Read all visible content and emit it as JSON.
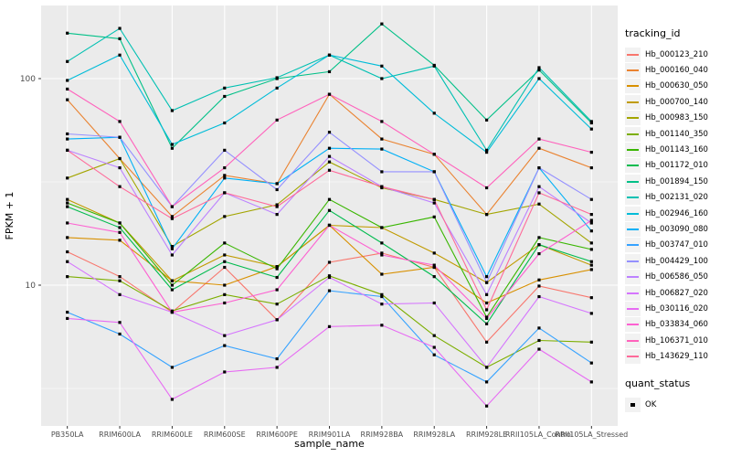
{
  "chart": {
    "y_axis_title": "FPKM + 1",
    "x_axis_title": "sample_name",
    "legend_title": "tracking_id",
    "legend2_title": "quant_status",
    "legend2_items": [
      "OK"
    ],
    "panel_bg": "#EBEBEB",
    "grid_color": "#FFFFFF",
    "tick_color": "#333333",
    "tick_label_color": "#4D4D4D",
    "marker_color": "#000000"
  },
  "chart_data": {
    "type": "line",
    "title": "",
    "xlabel": "sample_name",
    "ylabel": "FPKM + 1",
    "y_scale": "log10",
    "y_ticks": [
      10,
      100
    ],
    "y_minor_ticks": [
      3.162,
      31.62,
      316.2
    ],
    "ylim": [
      2.1,
      230
    ],
    "grid": true,
    "legend_position": "right",
    "marker": "black-square",
    "categories": [
      "PB350LA",
      "RRIM600LA",
      "RRIM600LE",
      "RRIM600SE",
      "RRIM600PE",
      "RRIM901LA",
      "RRIM928BA",
      "RRIM928LA",
      "RRIM928LE",
      "RRII105LA_Control",
      "RRII105LA_Stressed"
    ],
    "series": [
      {
        "name": "Hb_000123_210",
        "color": "#F8766D",
        "values": [
          14.5,
          11,
          7.4,
          12.2,
          6.8,
          12.9,
          14.3,
          12.2,
          5.3,
          9.9,
          8.7
        ]
      },
      {
        "name": "Hb_000160_040",
        "color": "#EA8331",
        "values": [
          79,
          41,
          21.5,
          34,
          31,
          84,
          51,
          43,
          22,
          46,
          37
        ]
      },
      {
        "name": "Hb_000630_050",
        "color": "#D89000",
        "values": [
          17,
          16.5,
          10.5,
          10,
          12.3,
          19.5,
          11.3,
          12.2,
          8.2,
          10.6,
          11.9
        ]
      },
      {
        "name": "Hb_000700_140",
        "color": "#C09B00",
        "values": [
          26,
          20,
          10.5,
          14,
          12.3,
          19.5,
          19,
          14.3,
          10.3,
          15.7,
          12.5
        ]
      },
      {
        "name": "Hb_000983_150",
        "color": "#A3A500",
        "values": [
          33,
          41,
          15.4,
          21.5,
          24.5,
          39.5,
          29.6,
          26,
          22,
          24.7,
          16
        ]
      },
      {
        "name": "Hb_001140_350",
        "color": "#7CAE00",
        "values": [
          11,
          10.5,
          7.5,
          9,
          8.1,
          11.1,
          9,
          5.7,
          4,
          5.4,
          5.3
        ]
      },
      {
        "name": "Hb_001143_160",
        "color": "#39B600",
        "values": [
          25,
          20,
          10,
          16,
          12,
          26,
          19,
          21.4,
          7,
          17,
          14.9
        ]
      },
      {
        "name": "Hb_001172_010",
        "color": "#00BB4E",
        "values": [
          24,
          19,
          9.5,
          13,
          10.9,
          23,
          16,
          11,
          6.5,
          15.7,
          13
        ]
      },
      {
        "name": "Hb_001894_150",
        "color": "#00C087",
        "values": [
          166,
          156,
          46,
          82,
          100,
          108,
          184,
          116,
          63,
          110,
          61
        ]
      },
      {
        "name": "Hb_002131_020",
        "color": "#00C0B2",
        "values": [
          121,
          175,
          70,
          90,
          101,
          130,
          100,
          115,
          45,
          113,
          62
        ]
      },
      {
        "name": "Hb_002946_160",
        "color": "#00BCD8",
        "values": [
          98,
          130,
          48,
          61,
          90,
          130,
          115,
          68,
          44,
          100,
          57
        ]
      },
      {
        "name": "Hb_003090_080",
        "color": "#00B0F6",
        "values": [
          51,
          52,
          15,
          33,
          31,
          46,
          45.6,
          35.4,
          11,
          37,
          18.3
        ]
      },
      {
        "name": "Hb_003747_010",
        "color": "#35A2FF",
        "values": [
          7.4,
          5.8,
          4,
          5.1,
          4.4,
          9.4,
          8.8,
          4.6,
          3.4,
          6.2,
          4.2
        ]
      },
      {
        "name": "Hb_004429_100",
        "color": "#9590FF",
        "values": [
          54,
          52,
          24,
          45,
          29,
          55,
          35.4,
          35.4,
          10.3,
          37,
          26
        ]
      },
      {
        "name": "Hb_006586_050",
        "color": "#BC81FF",
        "values": [
          45,
          37,
          14,
          28,
          22,
          42,
          30,
          25,
          9,
          30,
          20
        ]
      },
      {
        "name": "Hb_006827_020",
        "color": "#D575FE",
        "values": [
          13,
          9,
          7.4,
          5.7,
          6.8,
          10.9,
          8.1,
          8.2,
          4,
          8.8,
          7.3
        ]
      },
      {
        "name": "Hb_030116_020",
        "color": "#E76BF3",
        "values": [
          6.9,
          6.6,
          2.8,
          3.8,
          4,
          6.3,
          6.4,
          5,
          2.6,
          4.9,
          3.4
        ]
      },
      {
        "name": "Hb_033834_060",
        "color": "#FD61D1",
        "values": [
          20,
          18,
          7.4,
          8.2,
          9.5,
          19.5,
          14,
          12.5,
          6.9,
          14.2,
          20.6
        ]
      },
      {
        "name": "Hb_106371_010",
        "color": "#FF62BC",
        "values": [
          89,
          62,
          24,
          37,
          63,
          84,
          62,
          43,
          29.6,
          51,
          44
        ]
      },
      {
        "name": "Hb_143629_110",
        "color": "#FF6A9A",
        "values": [
          45,
          30,
          21,
          28,
          24,
          36,
          30,
          26,
          7.6,
          28,
          22
        ]
      }
    ]
  }
}
